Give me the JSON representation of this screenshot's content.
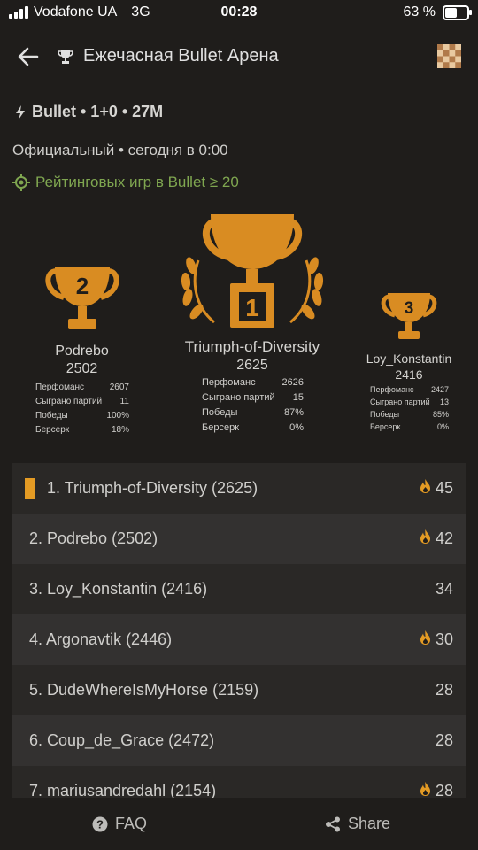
{
  "status_bar": {
    "carrier": "Vodafone UA",
    "network": "3G",
    "time": "00:28",
    "battery": "63 %",
    "battery_level": 0.63
  },
  "header": {
    "title": "Ежечасная Bullet Арена"
  },
  "tournament": {
    "format": "Bullet • 1+0 • 27M",
    "schedule": "Официальный • сегодня в 0:00",
    "condition": "Рейтинговых игр в Bullet ≥ 20"
  },
  "podium": [
    {
      "rank": "2",
      "name": "Podrebo",
      "rating": "2502",
      "stats": [
        [
          "Перфоманс",
          "2607"
        ],
        [
          "Сыграно партий",
          "11"
        ],
        [
          "Победы",
          "100%"
        ],
        [
          "Берсерк",
          "18%"
        ]
      ]
    },
    {
      "rank": "1",
      "name": "Triumph-of-Diversity",
      "rating": "2625",
      "stats": [
        [
          "Перфоманс",
          "2626"
        ],
        [
          "Сыграно партий",
          "15"
        ],
        [
          "Победы",
          "87%"
        ],
        [
          "Берсерк",
          "0%"
        ]
      ]
    },
    {
      "rank": "3",
      "name": "Loy_Konstantin",
      "rating": "2416",
      "stats": [
        [
          "Перфоманс",
          "2427"
        ],
        [
          "Сыграно партий",
          "13"
        ],
        [
          "Победы",
          "85%"
        ],
        [
          "Берсерк",
          "0%"
        ]
      ]
    }
  ],
  "standings": [
    {
      "label": "1. Triumph-of-Diversity (2625)",
      "score": "45",
      "fire": true
    },
    {
      "label": "2. Podrebo (2502)",
      "score": "42",
      "fire": true
    },
    {
      "label": "3. Loy_Konstantin (2416)",
      "score": "34",
      "fire": false
    },
    {
      "label": "4. Argonavtik (2446)",
      "score": "30",
      "fire": true
    },
    {
      "label": "5. DudeWhereIsMyHorse (2159)",
      "score": "28",
      "fire": false
    },
    {
      "label": "6. Coup_de_Grace (2472)",
      "score": "28",
      "fire": false
    },
    {
      "label": "7. mariusandredahl (2154)",
      "score": "28",
      "fire": true
    }
  ],
  "bottom_bar": {
    "faq": "FAQ",
    "share": "Share"
  },
  "colors": {
    "accent": "#e49b24",
    "trophy": "#d98c22",
    "condition": "#7fa650",
    "background": "#1f1d1b"
  }
}
